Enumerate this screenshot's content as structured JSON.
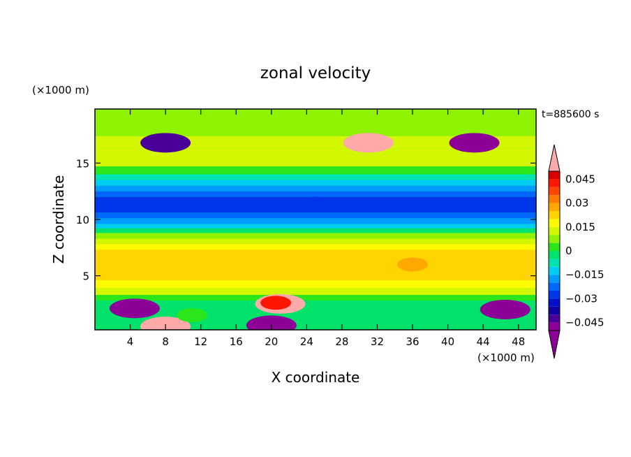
{
  "chart_data": {
    "type": "heatmap",
    "title": "zonal velocity",
    "xlabel": "X coordinate",
    "ylabel": "Z coordinate",
    "x_unit": "(×1000 m)",
    "y_unit": "(×1000 m)",
    "time_label": "t=885600 s",
    "xlim": [
      0,
      50
    ],
    "ylim": [
      0.2,
      19.8
    ],
    "x_ticks": [
      4,
      8,
      12,
      16,
      20,
      24,
      28,
      32,
      36,
      40,
      44,
      48
    ],
    "y_ticks": [
      5,
      10,
      15
    ],
    "x_tick_labels": [
      "4",
      "8",
      "12",
      "16",
      "20",
      "24",
      "28",
      "32",
      "36",
      "40",
      "44",
      "48"
    ],
    "y_tick_labels": [
      "5",
      "10",
      "15"
    ],
    "colorbar": {
      "levels": [
        -0.05,
        -0.045,
        -0.04,
        -0.035,
        -0.03,
        -0.025,
        -0.02,
        -0.015,
        -0.01,
        -0.005,
        0,
        0.005,
        0.01,
        0.015,
        0.02,
        0.025,
        0.03,
        0.035,
        0.04,
        0.045,
        0.05
      ],
      "tick_labels": [
        "0.045",
        "0.03",
        "0.015",
        "0",
        "−0.015",
        "−0.03",
        "−0.045"
      ],
      "tick_values": [
        0.045,
        0.03,
        0.015,
        0,
        -0.015,
        -0.03,
        -0.045
      ],
      "colors": [
        "#8c0097",
        "#4a0098",
        "#1200a5",
        "#0010c8",
        "#0036ea",
        "#0068ff",
        "#009bff",
        "#00cdf2",
        "#00e4b2",
        "#00e26a",
        "#2ae61a",
        "#8ef200",
        "#d2f700",
        "#fffa00",
        "#ffd400",
        "#ffa800",
        "#ff7c00",
        "#ff4600",
        "#ff1600",
        "#d90000"
      ],
      "over_color": "#ffaaaa",
      "under_color": "#8c0097"
    },
    "features": [
      {
        "x": 4.5,
        "z": 2.1,
        "value": -0.05
      },
      {
        "x": 46.5,
        "z": 2.0,
        "value": -0.05
      },
      {
        "x": 20,
        "z": 0.6,
        "value": -0.05
      },
      {
        "x": 21,
        "z": 2.5,
        "value": 0.05
      },
      {
        "x": 20.5,
        "z": 2.6,
        "value": 0.04
      },
      {
        "x": 31,
        "z": 16.8,
        "value": 0.05
      },
      {
        "x": 43,
        "z": 16.8,
        "value": -0.05
      },
      {
        "x": 8,
        "z": 16.8,
        "value": -0.045
      },
      {
        "x": 25,
        "z": 11.4,
        "value": -0.03
      },
      {
        "x": 36,
        "z": 6.0,
        "value": 0.025
      },
      {
        "x": 8,
        "z": 0.5,
        "value": 0.05
      },
      {
        "x": 11,
        "z": 1.5,
        "value": 0.0
      }
    ]
  }
}
